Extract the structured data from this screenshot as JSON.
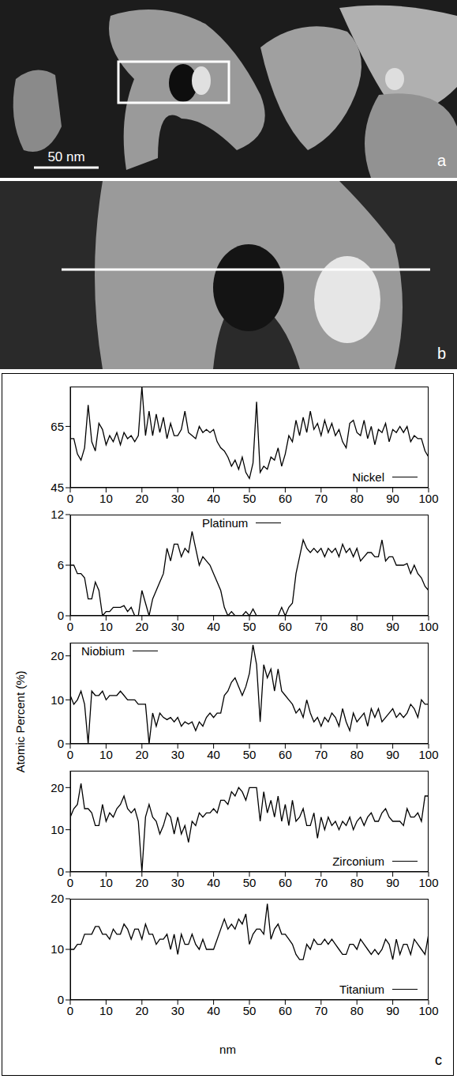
{
  "images": [
    {
      "label": "a",
      "scale_bar": "50 nm"
    },
    {
      "label": "b"
    }
  ],
  "chart_panel": {
    "label": "c",
    "xlabel": "nm",
    "ylabel": "Atomic Percent (%)"
  },
  "chart_data": [
    {
      "type": "line",
      "x": [
        0,
        1,
        2,
        3,
        4,
        5,
        6,
        7,
        8,
        9,
        10,
        11,
        12,
        13,
        14,
        15,
        16,
        17,
        18,
        19,
        20,
        21,
        22,
        23,
        24,
        25,
        26,
        27,
        28,
        29,
        30,
        31,
        32,
        33,
        34,
        35,
        36,
        37,
        38,
        39,
        40,
        41,
        42,
        43,
        44,
        45,
        46,
        47,
        48,
        49,
        50,
        51,
        52,
        53,
        54,
        55,
        56,
        57,
        58,
        59,
        60,
        61,
        62,
        63,
        64,
        65,
        66,
        67,
        68,
        69,
        70,
        71,
        72,
        73,
        74,
        75,
        76,
        77,
        78,
        79,
        80,
        81,
        82,
        83,
        84,
        85,
        86,
        87,
        88,
        89,
        90,
        91,
        92,
        93,
        94,
        95,
        96,
        97,
        98,
        99,
        100
      ],
      "series": [
        {
          "name": "Nickel",
          "color": "#000000",
          "values": [
            61,
            61,
            56,
            54,
            58,
            72,
            60,
            57,
            66,
            64,
            59,
            62,
            60,
            63,
            59,
            63,
            61,
            62,
            60,
            62,
            78,
            62,
            70,
            62,
            69,
            63,
            68,
            61,
            66,
            62,
            62,
            64,
            70,
            63,
            62,
            61,
            65,
            63,
            64,
            63,
            64,
            60,
            58,
            57,
            55,
            52,
            54,
            51,
            55,
            50,
            48,
            53,
            73,
            50,
            52,
            51,
            55,
            54,
            58,
            52,
            56,
            62,
            60,
            67,
            62,
            68,
            63,
            70,
            64,
            66,
            62,
            67,
            63,
            66,
            62,
            64,
            60,
            58,
            66,
            67,
            63,
            62,
            67,
            61,
            65,
            59,
            64,
            63,
            66,
            60,
            64,
            63,
            65,
            63,
            65,
            60,
            62,
            61,
            61,
            57,
            55
          ]
        }
      ],
      "xlim": [
        0,
        100
      ],
      "xticks": [
        0,
        10,
        20,
        30,
        40,
        50,
        60,
        70,
        80,
        90,
        100
      ],
      "ylim": [
        45,
        78
      ],
      "yticks": [
        45,
        65
      ],
      "legend": "lower right"
    },
    {
      "type": "line",
      "x": [
        0,
        1,
        2,
        3,
        4,
        5,
        6,
        7,
        8,
        9,
        10,
        11,
        12,
        13,
        14,
        15,
        16,
        17,
        18,
        19,
        20,
        21,
        22,
        23,
        24,
        25,
        26,
        27,
        28,
        29,
        30,
        31,
        32,
        33,
        34,
        35,
        36,
        37,
        38,
        39,
        40,
        41,
        42,
        43,
        44,
        45,
        46,
        47,
        48,
        49,
        50,
        51,
        52,
        53,
        54,
        55,
        56,
        57,
        58,
        59,
        60,
        61,
        62,
        63,
        64,
        65,
        66,
        67,
        68,
        69,
        70,
        71,
        72,
        73,
        74,
        75,
        76,
        77,
        78,
        79,
        80,
        81,
        82,
        83,
        84,
        85,
        86,
        87,
        88,
        89,
        90,
        91,
        92,
        93,
        94,
        95,
        96,
        97,
        98,
        99,
        100
      ],
      "series": [
        {
          "name": "Platinum",
          "color": "#000000",
          "values": [
            6,
            6,
            5,
            5,
            4.5,
            2,
            2,
            4,
            3,
            0,
            0.5,
            0.5,
            1,
            1,
            1,
            1.2,
            0.5,
            1,
            0,
            0,
            3,
            1.5,
            0,
            2,
            3,
            4,
            5,
            8,
            6.5,
            8.5,
            8.5,
            7,
            8,
            7.5,
            10,
            8,
            6,
            7,
            6.5,
            6,
            5,
            4,
            3,
            1,
            0,
            0.5,
            0,
            0,
            0,
            0.5,
            0,
            0.8,
            0,
            0,
            0,
            0,
            0,
            0,
            0,
            1,
            0,
            1,
            1.5,
            5,
            7,
            9,
            8,
            7.5,
            8,
            7.5,
            8,
            7,
            8,
            7.5,
            8,
            7,
            8.5,
            7.5,
            8,
            7,
            8,
            6.5,
            7,
            7.5,
            7.5,
            7,
            7,
            9,
            6.5,
            7,
            7,
            6,
            6,
            6,
            6.2,
            5,
            6,
            5,
            4.5,
            3.5,
            3
          ]
        }
      ],
      "xlim": [
        0,
        100
      ],
      "xticks": [
        0,
        10,
        20,
        30,
        40,
        50,
        60,
        70,
        80,
        90,
        100
      ],
      "ylim": [
        0,
        12
      ],
      "yticks": [
        0,
        6,
        12
      ],
      "legend": "upper center"
    },
    {
      "type": "line",
      "x": [
        0,
        1,
        2,
        3,
        4,
        5,
        6,
        7,
        8,
        9,
        10,
        11,
        12,
        13,
        14,
        15,
        16,
        17,
        18,
        19,
        20,
        21,
        22,
        23,
        24,
        25,
        26,
        27,
        28,
        29,
        30,
        31,
        32,
        33,
        34,
        35,
        36,
        37,
        38,
        39,
        40,
        41,
        42,
        43,
        44,
        45,
        46,
        47,
        48,
        49,
        50,
        51,
        52,
        53,
        54,
        55,
        56,
        57,
        58,
        59,
        60,
        61,
        62,
        63,
        64,
        65,
        66,
        67,
        68,
        69,
        70,
        71,
        72,
        73,
        74,
        75,
        76,
        77,
        78,
        79,
        80,
        81,
        82,
        83,
        84,
        85,
        86,
        87,
        88,
        89,
        90,
        91,
        92,
        93,
        94,
        95,
        96,
        97,
        98,
        99,
        100
      ],
      "series": [
        {
          "name": "Niobium",
          "color": "#000000",
          "values": [
            11,
            9,
            10,
            12,
            9,
            0,
            12,
            11,
            11,
            12,
            10,
            11,
            11,
            11,
            12,
            11,
            10,
            10,
            10,
            9,
            9,
            9,
            0,
            7,
            4,
            7,
            6,
            5.5,
            6,
            5,
            6,
            4,
            5,
            4.5,
            5,
            3,
            5,
            4,
            6,
            7,
            6,
            7,
            7,
            11,
            12,
            14,
            15,
            13,
            11,
            13,
            16,
            22.5,
            18,
            5,
            18,
            15,
            17,
            12,
            17,
            12,
            11,
            10,
            9,
            7,
            8,
            6,
            10,
            7,
            5,
            6,
            4,
            6,
            5,
            7,
            6,
            4,
            8,
            5,
            3,
            7,
            5,
            6,
            7,
            4,
            8,
            6,
            8,
            5,
            6,
            7,
            8,
            6,
            7,
            6,
            7,
            9,
            8,
            6,
            10,
            9,
            9
          ]
        }
      ],
      "xlim": [
        0,
        100
      ],
      "xticks": [
        0,
        10,
        20,
        30,
        40,
        50,
        60,
        70,
        80,
        90,
        100
      ],
      "ylim": [
        0,
        23
      ],
      "yticks": [
        0,
        10,
        20
      ],
      "legend": "upper left"
    },
    {
      "type": "line",
      "x": [
        0,
        1,
        2,
        3,
        4,
        5,
        6,
        7,
        8,
        9,
        10,
        11,
        12,
        13,
        14,
        15,
        16,
        17,
        18,
        19,
        20,
        21,
        22,
        23,
        24,
        25,
        26,
        27,
        28,
        29,
        30,
        31,
        32,
        33,
        34,
        35,
        36,
        37,
        38,
        39,
        40,
        41,
        42,
        43,
        44,
        45,
        46,
        47,
        48,
        49,
        50,
        51,
        52,
        53,
        54,
        55,
        56,
        57,
        58,
        59,
        60,
        61,
        62,
        63,
        64,
        65,
        66,
        67,
        68,
        69,
        70,
        71,
        72,
        73,
        74,
        75,
        76,
        77,
        78,
        79,
        80,
        81,
        82,
        83,
        84,
        85,
        86,
        87,
        88,
        89,
        90,
        91,
        92,
        93,
        94,
        95,
        96,
        97,
        98,
        99,
        100
      ],
      "series": [
        {
          "name": "Zirconium",
          "color": "#000000",
          "values": [
            13,
            15,
            16,
            21,
            15,
            15,
            14,
            11,
            11,
            16,
            12,
            14,
            13,
            15,
            16,
            18,
            15,
            14,
            15,
            12,
            0,
            13,
            16,
            13,
            12,
            9,
            11,
            14,
            13,
            9,
            13,
            9,
            11,
            7,
            12,
            11,
            14,
            13,
            14,
            14,
            15,
            14,
            17,
            17,
            16,
            19,
            18,
            20,
            19,
            17,
            20,
            20,
            20,
            12,
            19,
            14,
            17,
            13,
            18,
            12,
            16,
            11,
            17,
            12,
            13,
            15,
            11,
            11,
            14,
            8,
            13,
            10,
            13,
            11,
            12,
            10,
            12,
            11,
            13,
            10,
            12,
            13,
            11,
            13,
            14,
            12,
            12,
            14,
            15,
            13,
            12,
            12,
            12,
            11,
            15,
            13,
            13,
            14,
            12,
            18,
            18
          ]
        }
      ],
      "xlim": [
        0,
        100
      ],
      "xticks": [
        0,
        10,
        20,
        30,
        40,
        50,
        60,
        70,
        80,
        90,
        100
      ],
      "ylim": [
        0,
        24
      ],
      "yticks": [
        0,
        10,
        20
      ],
      "legend": "lower right"
    },
    {
      "type": "line",
      "x": [
        0,
        1,
        2,
        3,
        4,
        5,
        6,
        7,
        8,
        9,
        10,
        11,
        12,
        13,
        14,
        15,
        16,
        17,
        18,
        19,
        20,
        21,
        22,
        23,
        24,
        25,
        26,
        27,
        28,
        29,
        30,
        31,
        32,
        33,
        34,
        35,
        36,
        37,
        38,
        39,
        40,
        41,
        42,
        43,
        44,
        45,
        46,
        47,
        48,
        49,
        50,
        51,
        52,
        53,
        54,
        55,
        56,
        57,
        58,
        59,
        60,
        61,
        62,
        63,
        64,
        65,
        66,
        67,
        68,
        69,
        70,
        71,
        72,
        73,
        74,
        75,
        76,
        77,
        78,
        79,
        80,
        81,
        82,
        83,
        84,
        85,
        86,
        87,
        88,
        89,
        90,
        91,
        92,
        93,
        94,
        95,
        96,
        97,
        98,
        99,
        100
      ],
      "series": [
        {
          "name": "Titanium",
          "color": "#000000",
          "values": [
            10,
            10,
            11,
            11,
            13,
            13,
            13,
            14.5,
            14.5,
            13,
            13,
            12,
            14,
            13,
            13,
            15,
            14,
            12,
            14,
            14,
            12,
            15,
            13,
            13,
            11,
            12,
            12,
            13,
            10,
            13,
            9,
            13,
            11,
            11,
            13,
            11,
            10,
            12,
            10,
            10,
            10,
            12,
            14,
            16,
            14,
            15,
            14,
            16,
            15,
            17,
            11,
            13,
            14,
            14,
            13,
            19,
            12,
            14,
            15,
            13,
            13,
            12,
            11,
            9,
            8,
            8,
            11,
            10,
            12,
            11,
            11,
            12,
            11,
            12,
            11,
            10,
            9,
            9,
            11,
            11,
            10,
            12,
            11,
            10,
            9,
            10,
            9,
            10,
            12,
            11,
            8,
            12,
            9,
            11,
            11,
            9,
            12,
            11,
            10,
            9,
            13
          ]
        }
      ],
      "xlim": [
        0,
        100
      ],
      "xticks": [
        0,
        10,
        20,
        30,
        40,
        50,
        60,
        70,
        80,
        90,
        100
      ],
      "ylim": [
        0,
        20
      ],
      "yticks": [
        0,
        10,
        20
      ],
      "legend": "lower right"
    }
  ]
}
